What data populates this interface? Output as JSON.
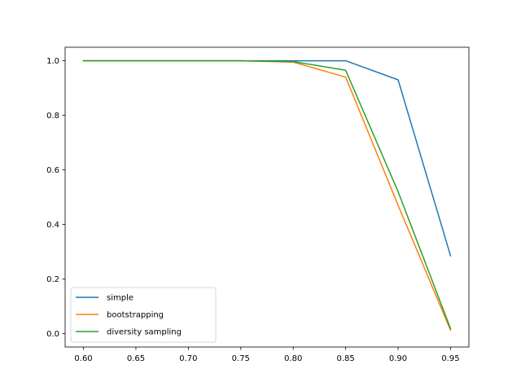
{
  "chart_data": {
    "type": "line",
    "title": "",
    "xlabel": "",
    "ylabel": "",
    "x": [
      0.6,
      0.65,
      0.7,
      0.75,
      0.8,
      0.85,
      0.9,
      0.95
    ],
    "xlim": [
      0.5825,
      0.9675
    ],
    "ylim": [
      -0.0495,
      1.0495
    ],
    "xticks": [
      "0.60",
      "0.65",
      "0.70",
      "0.75",
      "0.80",
      "0.85",
      "0.90",
      "0.95"
    ],
    "xtick_values": [
      0.6,
      0.65,
      0.7,
      0.75,
      0.8,
      0.85,
      0.9,
      0.95
    ],
    "yticks": [
      "0.0",
      "0.2",
      "0.4",
      "0.6",
      "0.8",
      "1.0"
    ],
    "ytick_values": [
      0.0,
      0.2,
      0.4,
      0.6,
      0.8,
      1.0
    ],
    "grid": false,
    "legend_position": "lower left",
    "series": [
      {
        "name": "simple",
        "color": "#1f77b4",
        "values": [
          1.0,
          1.0,
          1.0,
          1.0,
          1.0,
          1.0,
          0.93,
          0.285
        ]
      },
      {
        "name": "bootstrapping",
        "color": "#ff7f0e",
        "values": [
          1.0,
          1.0,
          1.0,
          1.0,
          0.995,
          0.94,
          0.47,
          0.012
        ]
      },
      {
        "name": "diversity sampling",
        "color": "#2ca02c",
        "values": [
          1.0,
          1.0,
          1.0,
          1.0,
          0.997,
          0.965,
          0.52,
          0.018
        ]
      }
    ]
  }
}
